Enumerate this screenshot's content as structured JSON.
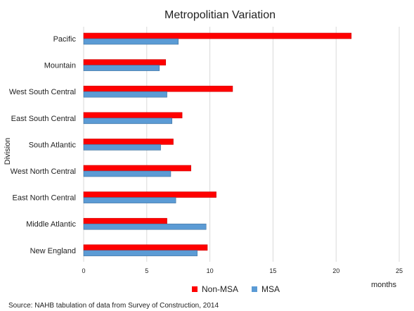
{
  "chart_data": {
    "type": "bar",
    "orientation": "horizontal",
    "title": "Metropolitian Variation",
    "ylabel": "Division",
    "xlabel": "months",
    "categories": [
      "Pacific",
      "Mountain",
      "West South Central",
      "East South Central",
      "South Atlantic",
      "West North Central",
      "East North Central",
      "Middle Atlantic",
      "New England"
    ],
    "series": [
      {
        "name": "Non-MSA",
        "color": "#ff0000",
        "values": [
          21.2,
          6.5,
          11.8,
          7.8,
          7.1,
          8.5,
          10.5,
          6.6,
          9.8
        ]
      },
      {
        "name": "MSA",
        "color": "#5b9bd5",
        "values": [
          7.5,
          6.0,
          6.6,
          7.0,
          6.1,
          6.9,
          7.3,
          9.7,
          9.0
        ]
      }
    ],
    "xlim": [
      0,
      25
    ],
    "xticks": [
      0,
      5,
      10,
      15,
      20,
      25
    ],
    "grid": "vertical",
    "legend": "bottom"
  },
  "source": "Source: NAHB tabulation of data from Survey of Construction, 2014"
}
